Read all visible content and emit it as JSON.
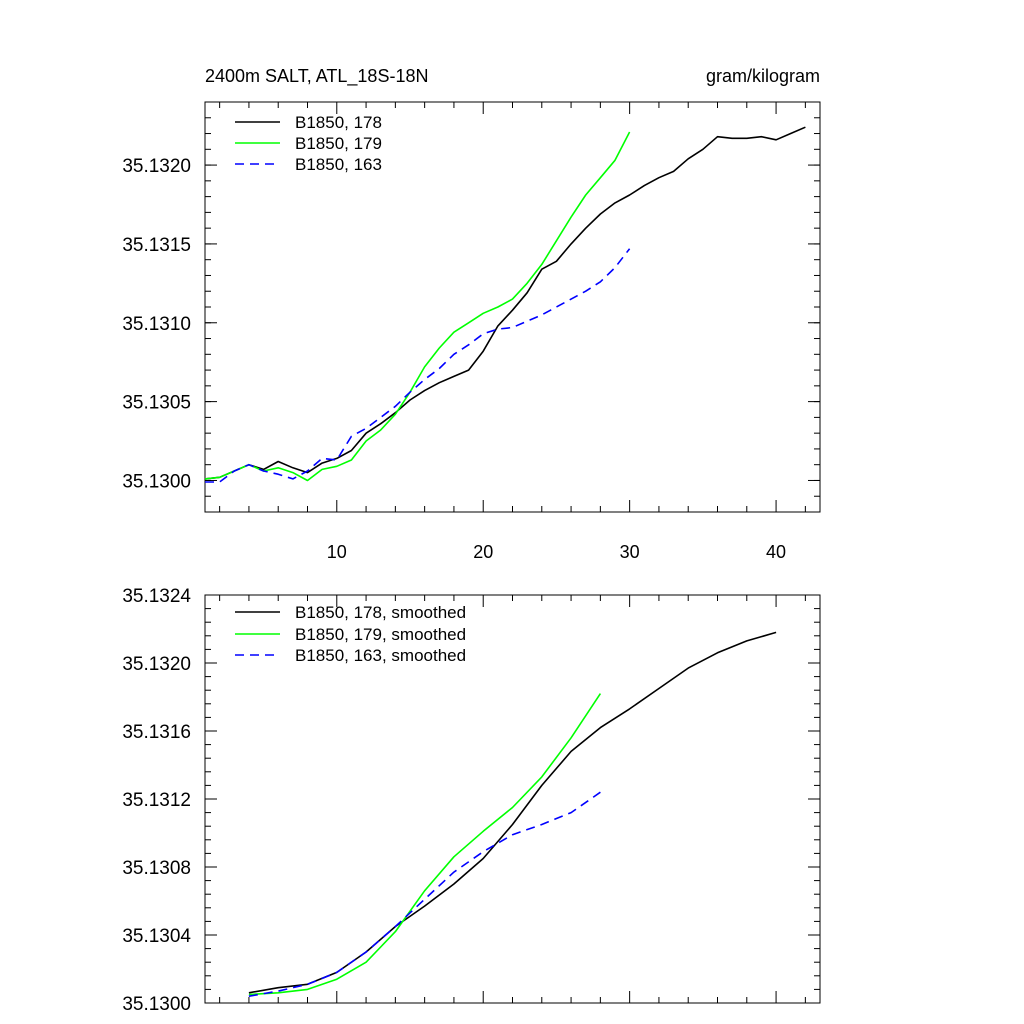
{
  "chart_data": [
    {
      "type": "line",
      "title_left": "2400m SALT, ATL_18S-18N",
      "title_right": "gram/kilogram",
      "xlabel": "",
      "ylabel": "",
      "xlim": [
        1,
        43
      ],
      "ylim": [
        35.1298,
        35.1324
      ],
      "x_ticks": [
        10,
        20,
        30,
        40
      ],
      "x_tick_labels": [
        "10",
        "20",
        "30",
        "40"
      ],
      "y_ticks": [
        35.13,
        35.1305,
        35.131,
        35.1315,
        35.132
      ],
      "y_tick_labels": [
        "35.1300",
        "35.1305",
        "35.1310",
        "35.1315",
        "35.1320"
      ],
      "legend_position": "top-left",
      "series": [
        {
          "name": "B1850, 178",
          "color": "#000000",
          "dash": "solid",
          "x": [
            1,
            2,
            3,
            4,
            5,
            6,
            7,
            8,
            9,
            10,
            11,
            12,
            13,
            14,
            15,
            16,
            17,
            18,
            19,
            20,
            21,
            22,
            23,
            24,
            25,
            26,
            27,
            28,
            29,
            30,
            31,
            32,
            33,
            34,
            35,
            36,
            37,
            38,
            39,
            40,
            41,
            42
          ],
          "values": [
            35.13001,
            35.13002,
            35.13006,
            35.1301,
            35.13007,
            35.13012,
            35.13008,
            35.13005,
            35.13011,
            35.13014,
            35.13019,
            35.1303,
            35.13036,
            35.13043,
            35.13051,
            35.13057,
            35.13062,
            35.13066,
            35.1307,
            35.13082,
            35.13098,
            35.13108,
            35.13119,
            35.13134,
            35.13139,
            35.1315,
            35.1316,
            35.13169,
            35.13176,
            35.13181,
            35.13187,
            35.13192,
            35.13196,
            35.13204,
            35.1321,
            35.13218,
            35.13217,
            35.13217,
            35.13218,
            35.13216,
            35.1322,
            35.13224
          ]
        },
        {
          "name": "B1850, 179",
          "color": "#00ff00",
          "dash": "solid",
          "x": [
            1,
            2,
            3,
            4,
            5,
            6,
            7,
            8,
            9,
            10,
            11,
            12,
            13,
            14,
            15,
            16,
            17,
            18,
            19,
            20,
            21,
            22,
            23,
            24,
            25,
            26,
            27,
            28,
            29,
            30
          ],
          "values": [
            35.13001,
            35.13002,
            35.13006,
            35.1301,
            35.13006,
            35.13008,
            35.13005,
            35.13,
            35.13007,
            35.13009,
            35.13013,
            35.13025,
            35.13032,
            35.13042,
            35.13056,
            35.13072,
            35.13084,
            35.13094,
            35.131,
            35.13106,
            35.1311,
            35.13115,
            35.13125,
            35.13137,
            35.13152,
            35.13167,
            35.13181,
            35.13192,
            35.13203,
            35.13221
          ]
        },
        {
          "name": "B1850, 163",
          "color": "#0000ff",
          "dash": "dashed",
          "x": [
            1,
            2,
            3,
            4,
            5,
            6,
            7,
            8,
            9,
            10,
            11,
            12,
            13,
            14,
            15,
            16,
            17,
            18,
            19,
            20,
            21,
            22,
            23,
            24,
            25,
            26,
            27,
            28,
            29,
            30
          ],
          "values": [
            35.12999,
            35.12999,
            35.13006,
            35.1301,
            35.13006,
            35.13004,
            35.13001,
            35.13006,
            35.13014,
            35.13013,
            35.13028,
            35.13033,
            35.1304,
            35.13047,
            35.13056,
            35.13064,
            35.13071,
            35.1308,
            35.13086,
            35.13093,
            35.13096,
            35.13097,
            35.13101,
            35.13105,
            35.1311,
            35.13115,
            35.1312,
            35.13126,
            35.13135,
            35.13147
          ]
        }
      ]
    },
    {
      "type": "line",
      "title_left": "",
      "title_right": "",
      "xlabel": "",
      "ylabel": "",
      "xlim": [
        1,
        43
      ],
      "ylim": [
        35.13,
        35.1324
      ],
      "x_ticks": [
        10,
        20,
        30,
        40
      ],
      "x_tick_labels": [],
      "y_ticks": [
        35.13,
        35.1304,
        35.1308,
        35.1312,
        35.1316,
        35.132,
        35.1324
      ],
      "y_tick_labels": [
        "35.1300",
        "35.1304",
        "35.1308",
        "35.1312",
        "35.1316",
        "35.1320",
        "35.1324"
      ],
      "legend_position": "top-left",
      "series": [
        {
          "name": "B1850, 178, smoothed",
          "color": "#000000",
          "dash": "solid",
          "x": [
            4,
            6,
            8,
            10,
            12,
            14,
            16,
            18,
            20,
            22,
            24,
            26,
            28,
            30,
            32,
            34,
            36,
            38,
            40
          ],
          "values": [
            35.13006,
            35.13009,
            35.13011,
            35.13018,
            35.1303,
            35.13045,
            35.13057,
            35.1307,
            35.13085,
            35.13105,
            35.13128,
            35.13148,
            35.13162,
            35.13173,
            35.13185,
            35.13197,
            35.13206,
            35.13213,
            35.13218
          ]
        },
        {
          "name": "B1850, 179, smoothed",
          "color": "#00ff00",
          "dash": "solid",
          "x": [
            4,
            6,
            8,
            10,
            12,
            14,
            16,
            18,
            20,
            22,
            24,
            26,
            28
          ],
          "values": [
            35.13005,
            35.13006,
            35.13008,
            35.13014,
            35.13024,
            35.13042,
            35.13066,
            35.13086,
            35.13101,
            35.13115,
            35.13133,
            35.13156,
            35.13182
          ]
        },
        {
          "name": "B1850, 163, smoothed",
          "color": "#0000ff",
          "dash": "dashed",
          "x": [
            4,
            6,
            8,
            10,
            12,
            14,
            16,
            18,
            20,
            22,
            24,
            26,
            28
          ],
          "values": [
            35.13004,
            35.13007,
            35.13011,
            35.13018,
            35.1303,
            35.13045,
            35.13061,
            35.13077,
            35.13089,
            35.13099,
            35.13105,
            35.13112,
            35.13124
          ]
        }
      ]
    }
  ]
}
